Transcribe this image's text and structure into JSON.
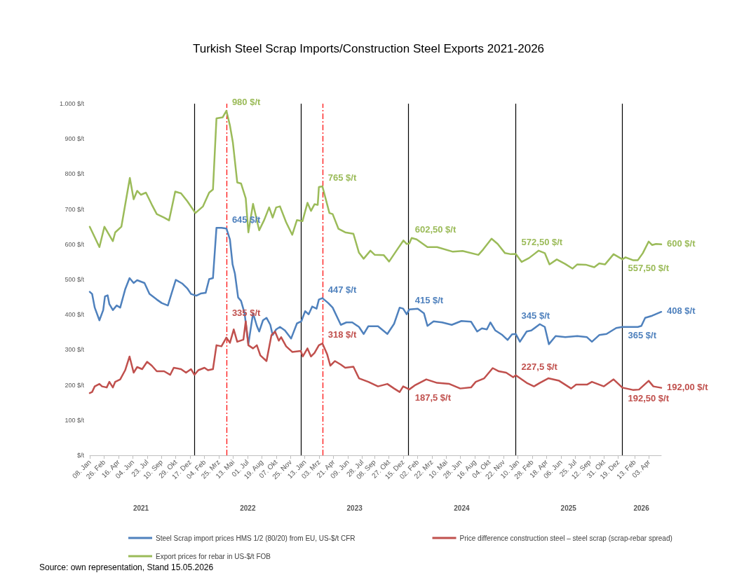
{
  "chart_data": {
    "type": "line",
    "title": "Turkish Steel Scrap Imports/Construction Steel Exports 2021-2026",
    "xlim": [
      "2021-01-08",
      "2026-05-15"
    ],
    "xticks": [
      {
        "value": "2021-01-08",
        "label": "08. Jan"
      },
      {
        "value": "2021-02-26",
        "label": "26. Feb"
      },
      {
        "value": "2021-04-16",
        "label": "16. Apr"
      },
      {
        "value": "2021-06-04",
        "label": "04. Jun"
      },
      {
        "value": "2021-07-23",
        "label": "23. Jul"
      },
      {
        "value": "2021-09-10",
        "label": "10. Sep"
      },
      {
        "value": "2021-10-29",
        "label": "29. Okt"
      },
      {
        "value": "2021-12-17",
        "label": "17. Dez"
      },
      {
        "value": "2022-02-04",
        "label": "04. Feb"
      },
      {
        "value": "2022-03-25",
        "label": "25. Mrz"
      },
      {
        "value": "2022-05-13",
        "label": "13. Mai"
      },
      {
        "value": "2022-07-01",
        "label": "01. Jul"
      },
      {
        "value": "2022-08-19",
        "label": "19. Aug"
      },
      {
        "value": "2022-10-07",
        "label": "07. Okt"
      },
      {
        "value": "2022-11-25",
        "label": "25. Nov"
      },
      {
        "value": "2023-01-13",
        "label": "13. Jan"
      },
      {
        "value": "2023-03-03",
        "label": "03. Mrz"
      },
      {
        "value": "2023-04-21",
        "label": "21. Apr"
      },
      {
        "value": "2023-06-09",
        "label": "09. Jun"
      },
      {
        "value": "2023-07-28",
        "label": "28. Jul"
      },
      {
        "value": "2023-09-08",
        "label": "08. Sep"
      },
      {
        "value": "2023-10-27",
        "label": "27. Okt"
      },
      {
        "value": "2023-12-15",
        "label": "15. Dez"
      },
      {
        "value": "2024-02-02",
        "label": "02. Feb"
      },
      {
        "value": "2024-03-22",
        "label": "22. Mrz"
      },
      {
        "value": "2024-05-10",
        "label": "10. Mai"
      },
      {
        "value": "2024-06-28",
        "label": "28. Jun"
      },
      {
        "value": "2024-08-16",
        "label": "16. Aug"
      },
      {
        "value": "2024-10-04",
        "label": "04. Okt"
      },
      {
        "value": "2024-11-22",
        "label": "22. Nov"
      },
      {
        "value": "2025-01-10",
        "label": "10. Jan"
      },
      {
        "value": "2025-02-28",
        "label": "28. Feb"
      },
      {
        "value": "2025-04-18",
        "label": "18. Apr"
      },
      {
        "value": "2025-06-06",
        "label": "06. Jun"
      },
      {
        "value": "2025-07-25",
        "label": "25. Jul"
      },
      {
        "value": "2025-09-12",
        "label": "12. Sep"
      },
      {
        "value": "2025-10-31",
        "label": "31. Okt"
      },
      {
        "value": "2025-12-19",
        "label": "19. Dez"
      },
      {
        "value": "2026-02-13",
        "label": "13. Feb"
      },
      {
        "value": "2026-04-03",
        "label": "03. Apr"
      }
    ],
    "x2lim": [
      "2021-01-08",
      "2026-05-15"
    ],
    "x2ticks": [
      {
        "value": "2021-07-02",
        "label": "2021"
      },
      {
        "value": "2022-07-02",
        "label": "2022"
      },
      {
        "value": "2023-07-02",
        "label": "2023"
      },
      {
        "value": "2024-07-02",
        "label": "2024"
      },
      {
        "value": "2025-07-02",
        "label": "2025"
      },
      {
        "value": "2026-03-08",
        "label": "2026"
      }
    ],
    "ylim": [
      0,
      1000
    ],
    "yticks": [
      {
        "value": 0,
        "label": "$/t"
      },
      {
        "value": 100,
        "label": "100 $/t"
      },
      {
        "value": 200,
        "label": "200 $/t"
      },
      {
        "value": 300,
        "label": "300 $/t"
      },
      {
        "value": 400,
        "label": "400 $/t"
      },
      {
        "value": 500,
        "label": "500 $/t"
      },
      {
        "value": 600,
        "label": "600 $/t"
      },
      {
        "value": 700,
        "label": "700 $/t"
      },
      {
        "value": 800,
        "label": "800 $/t"
      },
      {
        "value": 900,
        "label": "900 $/t"
      },
      {
        "value": 1000,
        "label": "1.000 $/t"
      }
    ],
    "legend": "bottom",
    "marker": "none",
    "series": [
      {
        "name": "Steel Scrap import prices HMS 1/2 (80/20) from EU, US-$/t CFR",
        "color": "#4f81bd",
        "x": [
          "2021-01-08",
          "2021-01-16",
          "2021-01-25",
          "2021-02-10",
          "2021-02-23",
          "2021-03-01",
          "2021-03-10",
          "2021-03-16",
          "2021-03-28",
          "2021-04-10",
          "2021-04-22",
          "2021-05-09",
          "2021-05-24",
          "2021-06-07",
          "2021-06-19",
          "2021-07-14",
          "2021-07-31",
          "2021-08-25",
          "2021-09-11",
          "2021-10-02",
          "2021-10-14",
          "2021-10-29",
          "2021-11-21",
          "2021-12-07",
          "2021-12-20",
          "2022-01-07",
          "2022-01-22",
          "2022-02-08",
          "2022-02-20",
          "2022-03-05",
          "2022-03-17",
          "2022-04-03",
          "2022-04-20",
          "2022-05-02",
          "2022-05-11",
          "2022-05-19",
          "2022-05-30",
          "2022-06-09",
          "2022-06-21",
          "2022-07-04",
          "2022-07-20",
          "2022-08-02",
          "2022-08-10",
          "2022-08-23",
          "2022-09-04",
          "2022-09-17",
          "2022-09-25",
          "2022-10-07",
          "2022-10-20",
          "2022-11-06",
          "2022-11-27",
          "2022-12-17",
          "2023-01-01",
          "2023-01-14",
          "2023-01-26",
          "2023-02-07",
          "2023-02-22",
          "2023-03-02",
          "2023-03-14",
          "2023-04-03",
          "2023-04-18",
          "2023-05-16",
          "2023-06-04",
          "2023-06-24",
          "2023-07-17",
          "2023-08-02",
          "2023-08-18",
          "2023-09-20",
          "2023-10-22",
          "2023-11-14",
          "2023-12-03",
          "2023-12-15",
          "2023-12-27",
          "2024-01-05",
          "2024-02-03",
          "2024-02-24",
          "2024-03-07",
          "2024-03-28",
          "2024-04-26",
          "2024-05-29",
          "2024-07-01",
          "2024-08-03",
          "2024-08-24",
          "2024-09-09",
          "2024-09-26",
          "2024-10-08",
          "2024-10-25",
          "2024-11-18",
          "2024-12-06",
          "2024-12-21",
          "2025-01-03",
          "2025-01-17",
          "2025-02-09",
          "2025-02-25",
          "2025-03-26",
          "2025-04-12",
          "2025-04-26",
          "2025-05-19",
          "2025-06-21",
          "2025-08-01",
          "2025-09-03",
          "2025-09-20",
          "2025-10-15",
          "2025-11-09",
          "2025-12-12",
          "2026-01-02",
          "2026-02-24",
          "2026-03-08",
          "2026-03-21",
          "2026-04-14",
          "2026-05-15"
        ],
        "values": [
          465,
          459,
          420,
          384,
          413,
          452,
          455,
          430,
          413,
          426,
          420,
          472,
          504,
          490,
          498,
          490,
          459,
          443,
          433,
          426,
          459,
          499,
          488,
          475,
          459,
          454,
          460,
          462,
          501,
          504,
          647,
          647,
          645,
          614,
          543,
          517,
          449,
          439,
          404,
          316,
          404,
          368,
          352,
          384,
          391,
          371,
          342,
          358,
          365,
          355,
          332,
          375,
          381,
          410,
          401,
          423,
          417,
          443,
          447,
          433,
          420,
          371,
          378,
          378,
          365,
          345,
          367,
          367,
          345,
          374,
          420,
          417,
          401,
          415,
          417,
          404,
          368,
          381,
          378,
          371,
          382,
          380,
          352,
          361,
          358,
          378,
          355,
          342,
          328,
          344,
          345,
          323,
          352,
          355,
          373,
          365,
          316,
          339,
          336,
          339,
          336,
          323,
          342,
          345,
          362,
          365,
          365,
          368,
          391,
          397,
          408
        ]
      },
      {
        "name": "Price difference construction steel – steel scrap (scrap-rebar spread)",
        "color": "#c0504d",
        "x": [
          "2021-01-08",
          "2021-01-16",
          "2021-01-25",
          "2021-02-10",
          "2021-02-19",
          "2021-03-07",
          "2021-03-16",
          "2021-03-28",
          "2021-04-05",
          "2021-04-22",
          "2021-05-09",
          "2021-05-24",
          "2021-06-07",
          "2021-06-19",
          "2021-07-06",
          "2021-07-23",
          "2021-08-08",
          "2021-08-25",
          "2021-09-19",
          "2021-10-10",
          "2021-10-22",
          "2021-11-16",
          "2021-12-03",
          "2021-12-20",
          "2022-01-01",
          "2022-01-14",
          "2022-02-04",
          "2022-02-16",
          "2022-03-05",
          "2022-03-17",
          "2022-04-03",
          "2022-04-20",
          "2022-05-02",
          "2022-05-15",
          "2022-05-27",
          "2022-06-17",
          "2022-06-25",
          "2022-07-04",
          "2022-07-20",
          "2022-08-02",
          "2022-08-14",
          "2022-09-04",
          "2022-09-21",
          "2022-10-03",
          "2022-10-16",
          "2022-10-24",
          "2022-11-10",
          "2022-12-01",
          "2022-12-30",
          "2023-01-06",
          "2023-01-22",
          "2023-02-03",
          "2023-02-15",
          "2023-03-02",
          "2023-03-14",
          "2023-03-30",
          "2023-04-10",
          "2023-04-26",
          "2023-05-16",
          "2023-05-31",
          "2023-06-28",
          "2023-07-17",
          "2023-08-18",
          "2023-09-20",
          "2023-10-22",
          "2023-11-14",
          "2023-12-03",
          "2023-12-15",
          "2024-01-05",
          "2024-01-26",
          "2024-03-03",
          "2024-04-09",
          "2024-05-21",
          "2024-06-27",
          "2024-08-03",
          "2024-08-19",
          "2024-09-17",
          "2024-10-16",
          "2024-11-06",
          "2024-12-01",
          "2024-12-25",
          "2025-01-03",
          "2025-02-09",
          "2025-03-06",
          "2025-03-26",
          "2025-04-24",
          "2025-05-31",
          "2025-07-11",
          "2025-07-28",
          "2025-09-03",
          "2025-09-20",
          "2025-10-31",
          "2025-12-03",
          "2026-01-02",
          "2026-02-07",
          "2026-02-28",
          "2026-04-02",
          "2026-04-18",
          "2026-05-15"
        ],
        "values": [
          177,
          180,
          196,
          203,
          196,
          193,
          209,
          193,
          209,
          216,
          242,
          281,
          235,
          251,
          245,
          266,
          255,
          239,
          239,
          229,
          249,
          245,
          235,
          245,
          229,
          242,
          249,
          242,
          245,
          313,
          310,
          335,
          320,
          358,
          323,
          329,
          381,
          313,
          304,
          313,
          284,
          268,
          342,
          352,
          326,
          336,
          310,
          294,
          297,
          281,
          304,
          281,
          291,
          313,
          318,
          288,
          255,
          268,
          258,
          249,
          252,
          219,
          209,
          196,
          203,
          190,
          180,
          196,
          187.5,
          200,
          216,
          206,
          203,
          190,
          193,
          209,
          219,
          248,
          239,
          235,
          222,
          227.5,
          206,
          196,
          206,
          219,
          212,
          190,
          201,
          201,
          209,
          196,
          216,
          192.5,
          186,
          187,
          212,
          196,
          192
        ]
      },
      {
        "name": "Export prices for rebar in US-$/t FOB",
        "color": "#9bbb59",
        "x": [
          "2021-01-08",
          "2021-02-10",
          "2021-02-27",
          "2021-03-28",
          "2021-04-05",
          "2021-04-26",
          "2021-05-25",
          "2021-06-07",
          "2021-06-19",
          "2021-07-02",
          "2021-07-19",
          "2021-08-08",
          "2021-08-25",
          "2021-09-19",
          "2021-10-06",
          "2021-10-27",
          "2021-11-16",
          "2021-12-07",
          "2022-01-04",
          "2022-01-30",
          "2022-02-20",
          "2022-03-05",
          "2022-03-17",
          "2022-04-07",
          "2022-04-20",
          "2022-05-02",
          "2022-05-12",
          "2022-05-27",
          "2022-06-09",
          "2022-06-25",
          "2022-07-04",
          "2022-07-20",
          "2022-08-10",
          "2022-08-27",
          "2022-09-13",
          "2022-09-25",
          "2022-10-07",
          "2022-10-20",
          "2022-11-10",
          "2022-12-01",
          "2022-12-17",
          "2023-01-05",
          "2023-01-22",
          "2023-02-03",
          "2023-02-15",
          "2023-02-26",
          "2023-03-02",
          "2023-03-14",
          "2023-04-07",
          "2023-04-18",
          "2023-05-08",
          "2023-05-31",
          "2023-06-28",
          "2023-07-17",
          "2023-08-02",
          "2023-08-25",
          "2023-09-09",
          "2023-10-10",
          "2023-10-28",
          "2023-11-22",
          "2023-12-16",
          "2023-12-27",
          "2024-01-05",
          "2024-01-13",
          "2024-01-30",
          "2024-03-07",
          "2024-04-09",
          "2024-06-02",
          "2024-07-05",
          "2024-08-28",
          "2024-09-13",
          "2024-10-12",
          "2024-11-02",
          "2024-11-27",
          "2024-12-17",
          "2025-01-03",
          "2025-01-23",
          "2025-02-17",
          "2025-03-22",
          "2025-04-12",
          "2025-04-28",
          "2025-05-23",
          "2025-06-21",
          "2025-07-16",
          "2025-08-01",
          "2025-08-30",
          "2025-09-28",
          "2025-10-15",
          "2025-11-04",
          "2025-12-03",
          "2026-01-02",
          "2026-01-13",
          "2026-02-07",
          "2026-02-24",
          "2026-03-13",
          "2026-04-02",
          "2026-04-14",
          "2026-04-27",
          "2026-05-15"
        ],
        "values": [
          650,
          592,
          650,
          609,
          634,
          650,
          789,
          728,
          752,
          741,
          747,
          713,
          686,
          676,
          668,
          750,
          745,
          723,
          689,
          708,
          747,
          756,
          958,
          961,
          980,
          938,
          890,
          776,
          773,
          731,
          634,
          715,
          640,
          669,
          705,
          676,
          705,
          708,
          663,
          627,
          669,
          666,
          718,
          695,
          714,
          712,
          763,
          765,
          689,
          686,
          644,
          634,
          630,
          576,
          559,
          582,
          570,
          569,
          551,
          582,
          611,
          601,
          602.5,
          618,
          614,
          592,
          592,
          579,
          581,
          570,
          585,
          616,
          601,
          575,
          572,
          572.5,
          550,
          561,
          582,
          575,
          543,
          557,
          544,
          531,
          543,
          542,
          535,
          546,
          543,
          572,
          557.5,
          563,
          555,
          555,
          575,
          608,
          598,
          601,
          600
        ]
      }
    ],
    "annotations": [
      {
        "text": "980 $/t",
        "x": "2022-04-20",
        "y": 980
      },
      {
        "text": "645 $/t",
        "x": "2022-04-20",
        "y": 645
      },
      {
        "text": "335 $/t",
        "x": "2022-04-20",
        "y": 335
      },
      {
        "text": "765 $/t",
        "x": "2023-03-14",
        "y": 765
      },
      {
        "text": "447 $/t",
        "x": "2023-03-14",
        "y": 447
      },
      {
        "text": "318 $/t",
        "x": "2023-03-14",
        "y": 318
      },
      {
        "text": "602,50 $/t",
        "x": "2024-01-05",
        "y": 602.5
      },
      {
        "text": "415 $/t",
        "x": "2024-01-05",
        "y": 415
      },
      {
        "text": "187,5 $/t",
        "x": "2024-01-05",
        "y": 187.5
      },
      {
        "text": "572,50 $/t",
        "x": "2025-01-03",
        "y": 572.5
      },
      {
        "text": "345 $/t",
        "x": "2025-01-03",
        "y": 345
      },
      {
        "text": "227,5 $/t",
        "x": "2025-01-03",
        "y": 227.5
      },
      {
        "text": "557,50 $/t",
        "x": "2026-01-02",
        "y": 557.5
      },
      {
        "text": "365 $/t",
        "x": "2026-01-02",
        "y": 365
      },
      {
        "text": "192,50 $/t",
        "x": "2026-01-02",
        "y": 192.5
      },
      {
        "text": "600 $/t",
        "x": "2026-05-15",
        "y": 600
      },
      {
        "text": "408 $/t",
        "x": "2026-05-15",
        "y": 408
      },
      {
        "text": "192,00 $/t",
        "x": "2026-05-15",
        "y": 192
      },
      "Source: own representation, Stand 15.05.2026"
    ],
    "ref_lines": [
      {
        "axis": "x",
        "value": "2022-01-01",
        "color": "#000000"
      },
      {
        "axis": "x",
        "value": "2023-01-01",
        "color": "#000000"
      },
      {
        "axis": "x",
        "value": "2024-01-01",
        "color": "#000000"
      },
      {
        "axis": "x",
        "value": "2025-01-01",
        "color": "#000000"
      },
      {
        "axis": "x",
        "value": "2026-01-01",
        "color": "#000000"
      },
      {
        "axis": "x",
        "value": "2022-04-20",
        "color": "#ff0000",
        "line_style": "dashed"
      },
      {
        "axis": "x",
        "value": "2023-03-14",
        "color": "#ff0000",
        "line_style": "dashed"
      }
    ]
  }
}
